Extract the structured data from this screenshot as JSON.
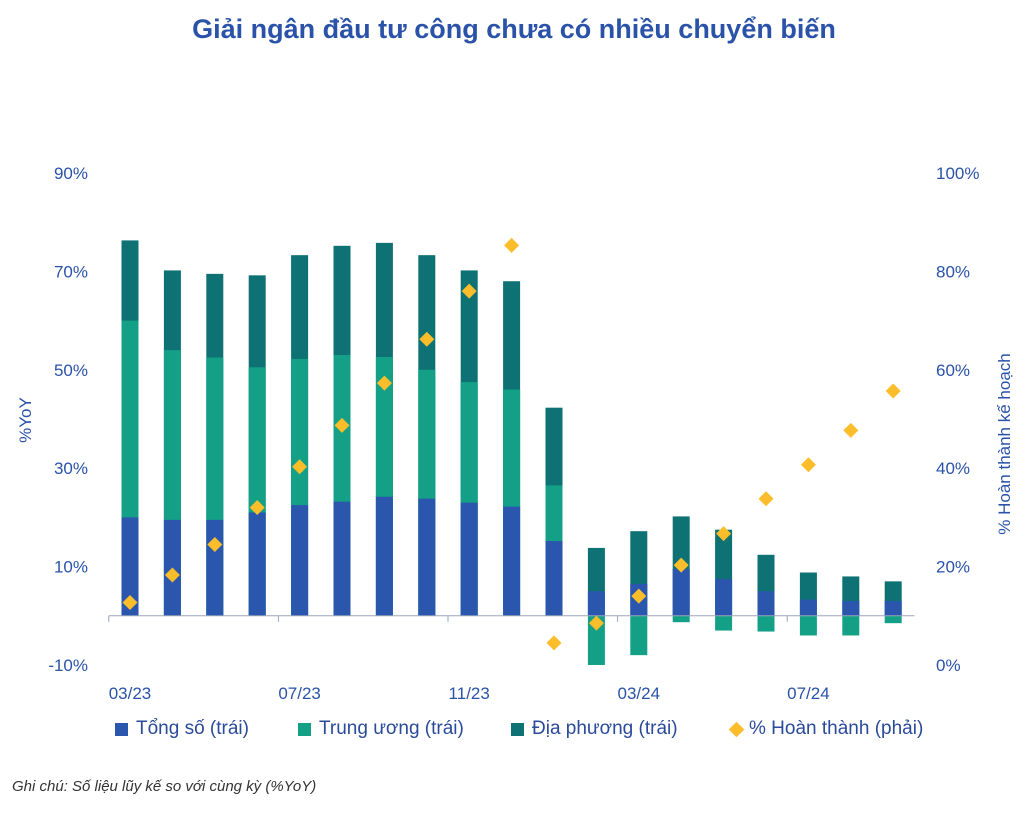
{
  "title": "Giải ngân đầu tư công chưa có nhiều chuyển biến",
  "note": "Ghi chú: Số liệu lũy kế so với cùng kỳ (%YoY)",
  "colors": {
    "total": "#2a57ad",
    "central": "#14a087",
    "local": "#0e7173",
    "completion": "#fbbd2a",
    "text": "#2a52a8"
  },
  "chart_data": {
    "type": "bar",
    "ylabel": "%YoY",
    "ylabel_right": "% Hoàn thành kế hoạch",
    "ylim": [
      -10,
      90
    ],
    "ylim_right": [
      0,
      100
    ],
    "y_ticks": [
      "90%",
      "70%",
      "50%",
      "30%",
      "10%",
      "-10%"
    ],
    "y_ticks_right": [
      "100%",
      "80%",
      "60%",
      "40%",
      "20%",
      "0%"
    ],
    "x_labels": [
      "03/23",
      "07/23",
      "11/23",
      "03/24",
      "07/24"
    ],
    "categories": [
      "03/23",
      "04/23",
      "05/23",
      "06/23",
      "07/23",
      "08/23",
      "09/23",
      "10/23",
      "11/23",
      "12/23",
      "01/24",
      "02/24",
      "03/24",
      "04/24",
      "05/24",
      "06/24",
      "07/24",
      "08/24",
      "09/24"
    ],
    "legend_position": "bottom",
    "series": [
      {
        "name": "Tổng số (trái)",
        "axis": "left",
        "values": [
          20,
          19.5,
          19.5,
          21,
          22.5,
          23.2,
          24.2,
          23.8,
          23,
          22.2,
          15.2,
          5,
          6.5,
          9.5,
          7.5,
          5,
          3.3,
          3,
          3
        ]
      },
      {
        "name": "Trung ương (trái)",
        "axis": "left",
        "values": [
          60,
          54,
          52.5,
          50.5,
          52.2,
          53,
          52.6,
          50,
          47.5,
          46,
          26.5,
          -10,
          -8,
          -1.3,
          -3,
          -3.2,
          -4,
          -4,
          -1.5
        ]
      },
      {
        "name": "Địa phương (trái)",
        "axis": "left",
        "values": [
          76.3,
          70.2,
          69.5,
          69.2,
          73.3,
          75.2,
          75.8,
          73.3,
          70.2,
          68,
          42.3,
          13.8,
          17.2,
          20.2,
          17.5,
          12.4,
          8.8,
          8,
          7
        ]
      },
      {
        "name": "% Hoàn thành (phải)",
        "axis": "right",
        "marker": "diamond",
        "values": [
          12.7,
          18.3,
          24.5,
          32,
          40.3,
          48.7,
          57.3,
          66.2,
          76,
          85.3,
          4.5,
          8.5,
          14,
          20.3,
          26.7,
          33.8,
          40.7,
          47.7,
          55.7
        ]
      }
    ]
  }
}
